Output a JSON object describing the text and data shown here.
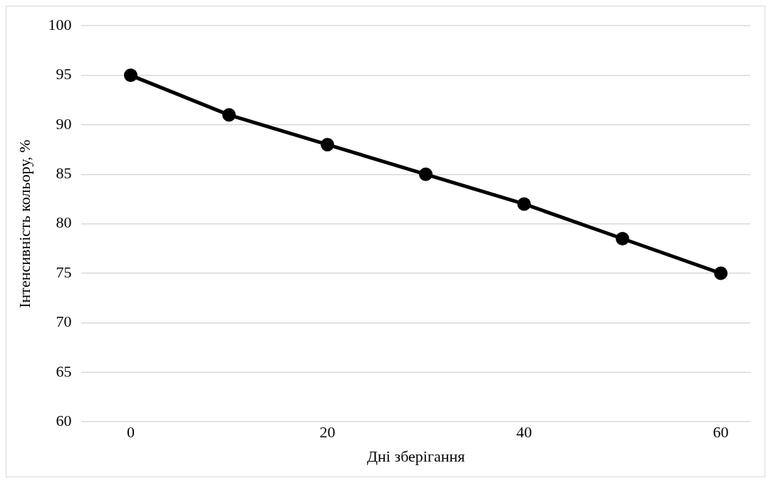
{
  "chart_data": {
    "type": "line",
    "xlabel": "Дні зберігання",
    "ylabel": "Інтенсивність кольору, %",
    "x": [
      0,
      10,
      20,
      30,
      40,
      50,
      60
    ],
    "series": [
      {
        "color": "#000000",
        "values": [
          95,
          91,
          88,
          85,
          82,
          78.5,
          75
        ]
      }
    ],
    "xlim": [
      -5,
      63
    ],
    "xticks": [
      0,
      20,
      40,
      60
    ],
    "ylim": [
      60,
      100
    ],
    "yticks": [
      60,
      65,
      70,
      75,
      80,
      85,
      90,
      95,
      100
    ],
    "grid": "y",
    "legend": false,
    "marker": "circle",
    "line_style": "solid"
  }
}
